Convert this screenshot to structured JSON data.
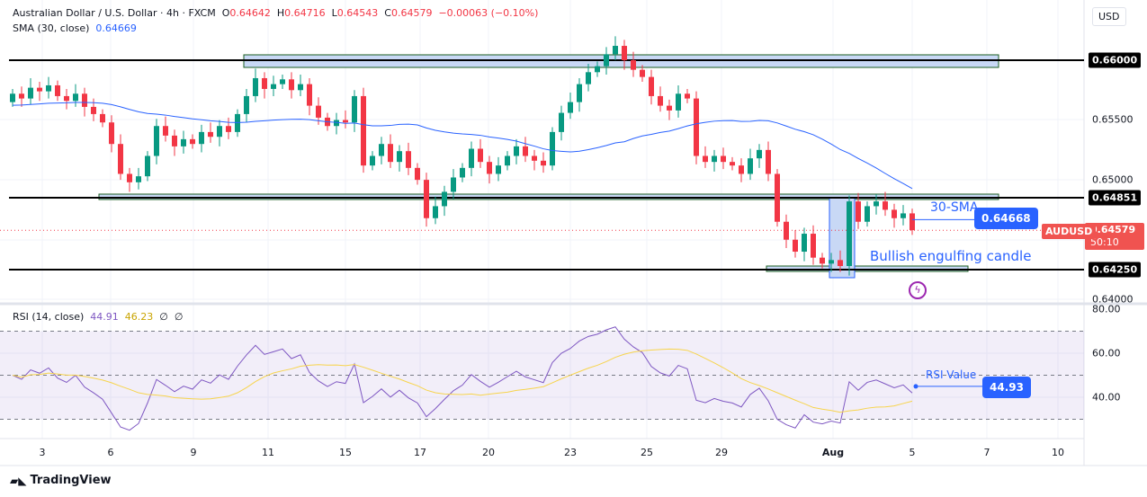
{
  "header": {
    "symbol": "Australian Dollar / U.S. Dollar · 4h · FXCM",
    "o_label": "O",
    "o": "0.64642",
    "h_label": "H",
    "h": "0.64716",
    "l_label": "L",
    "l": "0.64543",
    "c_label": "C",
    "c": "0.64579",
    "change": "−0.00063 (−0.10%)",
    "sma_label": "SMA (30, close)",
    "sma_value": "0.64669",
    "rsi_label": "RSI (14, close)",
    "rsi_value": "44.91",
    "rsi_ma": "46.23",
    "rsi_x1": "∅",
    "rsi_x2": "∅"
  },
  "currency": "USD",
  "price_axis": {
    "p66000": "0.66000",
    "p65500": "0.65500",
    "p65000": "0.65000",
    "p64851": "0.64851",
    "current": "0.64579",
    "countdown": "50:10",
    "p64250": "0.64250",
    "p64000": "0.64000",
    "r80": "80.00",
    "r60": "60.00",
    "r40": "40.00"
  },
  "symbol_tag": "AUDUSD",
  "time_axis": [
    "3",
    "6",
    "9",
    "11",
    "15",
    "17",
    "20",
    "23",
    "25",
    "29",
    "Aug",
    "5",
    "7",
    "10"
  ],
  "annotations": {
    "sma_text": "30-SMA",
    "sma_box": "0.64668",
    "engulfing": "Bullish engulfing candle",
    "rsi_text": "RSI Value",
    "rsi_box": "44.93"
  },
  "brand": "TradingView",
  "colors": {
    "up": "#089981",
    "down": "#f23645",
    "sma": "#2962ff",
    "rsi": "#7e57c2",
    "rsi_ma": "#f7d44c"
  },
  "chart_data": {
    "type": "candlestick",
    "ylim": [
      0.6392,
      0.6628
    ],
    "levels": [
      0.66,
      0.64851,
      0.6425
    ],
    "rsi_levels": [
      70,
      50,
      30
    ],
    "closes": [
      0.6572,
      0.6568,
      0.6577,
      0.6574,
      0.6579,
      0.657,
      0.6566,
      0.6572,
      0.6561,
      0.6555,
      0.6548,
      0.653,
      0.6505,
      0.6498,
      0.6503,
      0.652,
      0.6545,
      0.6537,
      0.6528,
      0.6534,
      0.653,
      0.654,
      0.6536,
      0.6545,
      0.654,
      0.6555,
      0.657,
      0.6585,
      0.6576,
      0.658,
      0.6584,
      0.6575,
      0.658,
      0.6562,
      0.6552,
      0.6545,
      0.655,
      0.6548,
      0.657,
      0.6512,
      0.652,
      0.653,
      0.6515,
      0.6524,
      0.651,
      0.65,
      0.6468,
      0.6478,
      0.649,
      0.6502,
      0.651,
      0.6526,
      0.6515,
      0.6505,
      0.6512,
      0.652,
      0.6528,
      0.652,
      0.6516,
      0.6512,
      0.654,
      0.6556,
      0.6565,
      0.658,
      0.659,
      0.6595,
      0.6605,
      0.6612,
      0.66,
      0.6592,
      0.6586,
      0.657,
      0.6562,
      0.6558,
      0.6572,
      0.6568,
      0.652,
      0.6515,
      0.652,
      0.6515,
      0.6512,
      0.6505,
      0.6518,
      0.6525,
      0.6505,
      0.6465,
      0.645,
      0.644,
      0.6455,
      0.6435,
      0.643,
      0.6433,
      0.6428,
      0.6482,
      0.6465,
      0.6478,
      0.6482,
      0.6475,
      0.6468,
      0.6472,
      0.6458
    ]
  }
}
